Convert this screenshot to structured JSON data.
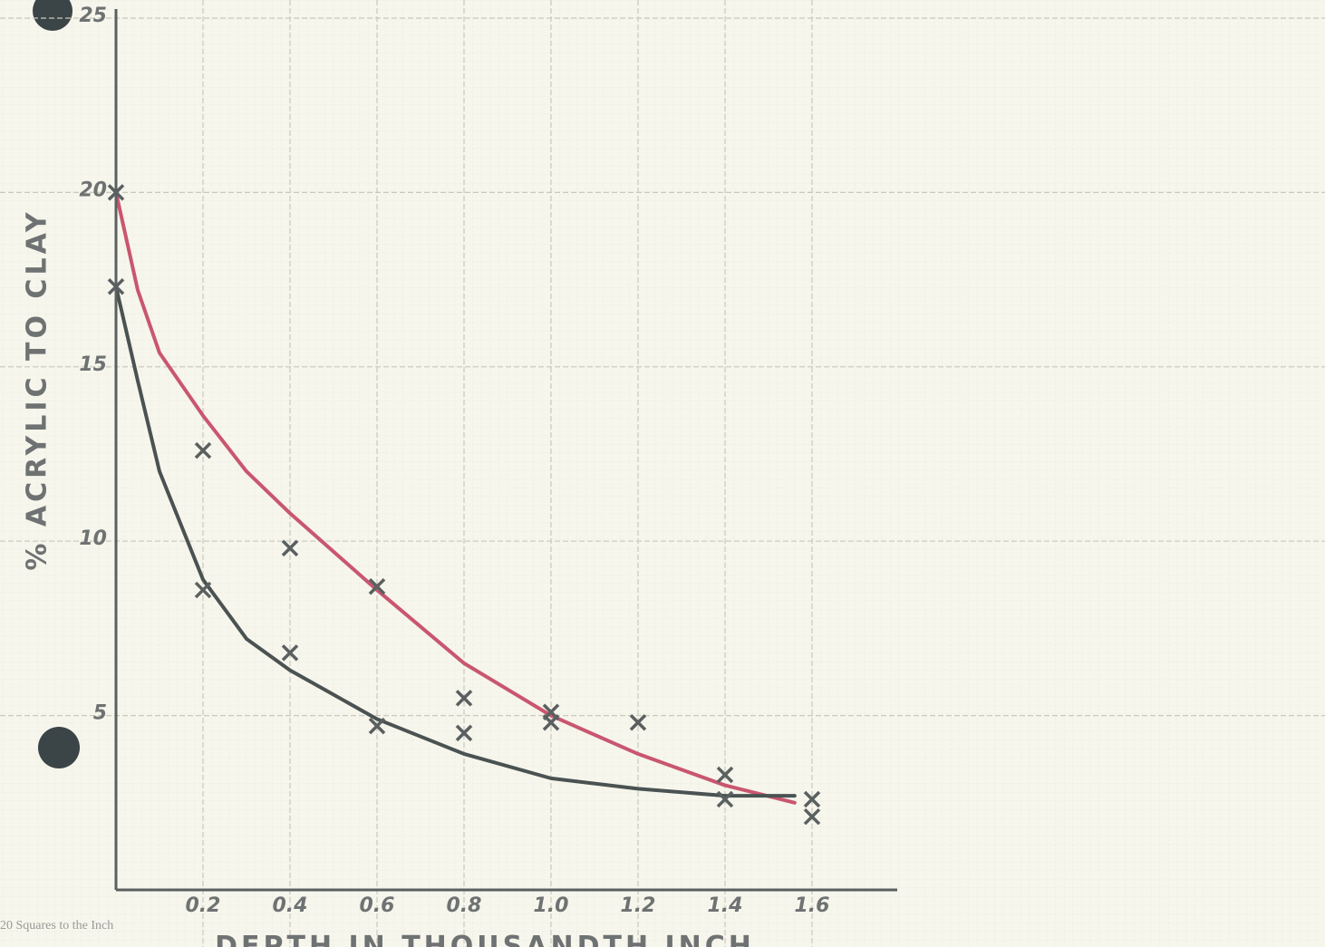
{
  "chart_data": {
    "type": "scatter",
    "ylabel": "% ACRYLIC TO CLAY",
    "xlabel": "DEPTH IN THOUSANDTH INCH",
    "note": "20 Squares to the Inch",
    "xlim": [
      0,
      1.8
    ],
    "ylim": [
      0,
      25
    ],
    "xticks": [
      0.2,
      0.4,
      0.6,
      0.8,
      {
        "value": 1,
        "label": "1.0"
      },
      1.2,
      1.4,
      1.6
    ],
    "yticks": [
      5,
      10,
      15,
      20,
      25
    ],
    "grid": true,
    "series": [
      {
        "color": "#5a6060",
        "x": [
          0,
          0.2,
          0.4,
          0.6,
          0.8,
          1.0,
          1.2,
          1.4,
          1.6
        ],
        "values": [
          20,
          12.6,
          9.8,
          8.7,
          5.5,
          5.1,
          4.8,
          3.3,
          2.1
        ]
      },
      {
        "color": "#5a6060",
        "x": [
          0,
          0.2,
          0.4,
          0.6,
          0.8,
          1.0,
          1.4,
          1.6
        ],
        "values": [
          17.3,
          8.6,
          6.8,
          4.7,
          4.5,
          4.8,
          2.6,
          2.6
        ]
      }
    ],
    "curves": [
      {
        "color": "#c9566f",
        "x": [
          0,
          0.05,
          0.1,
          0.2,
          0.3,
          0.4,
          0.6,
          0.8,
          1.0,
          1.2,
          1.4,
          1.56
        ],
        "values": [
          20,
          17.2,
          15.4,
          13.6,
          12.0,
          10.8,
          8.6,
          6.5,
          5.0,
          3.9,
          3.0,
          2.5
        ]
      },
      {
        "color": "#4a5252",
        "x": [
          0,
          0.05,
          0.1,
          0.2,
          0.3,
          0.4,
          0.6,
          0.8,
          1.0,
          1.2,
          1.4,
          1.56
        ],
        "values": [
          17.3,
          14.6,
          12.0,
          8.9,
          7.2,
          6.3,
          4.9,
          3.9,
          3.2,
          2.9,
          2.7,
          2.7
        ]
      }
    ]
  }
}
